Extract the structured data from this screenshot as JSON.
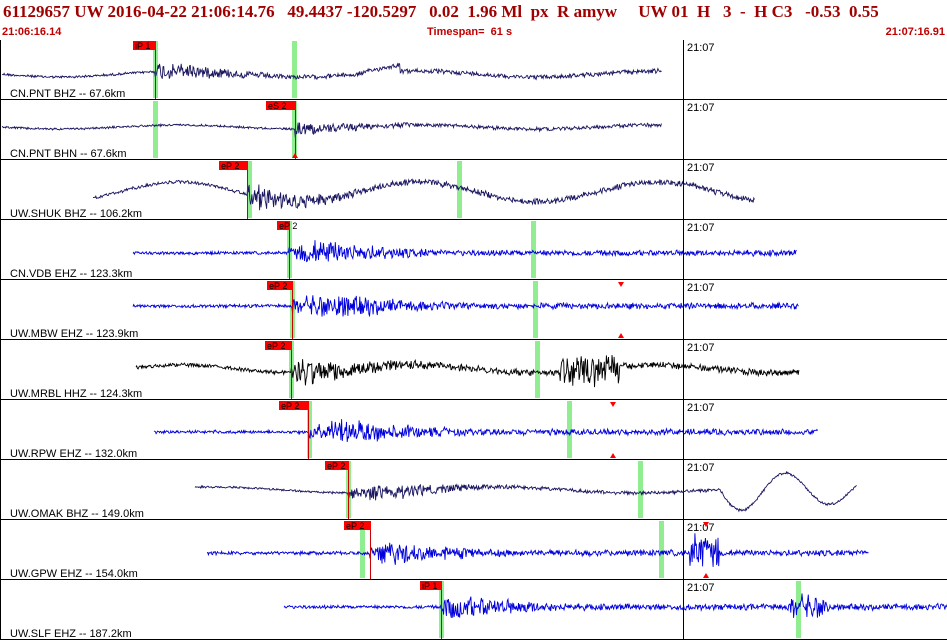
{
  "header": {
    "title": "61129657 UW 2016-04-22 21:06:14.76   49.4437 -120.5297   0.02  1.96 Ml  px  R amyw     UW 01  H   3  -  H C3   -0.53  0.55",
    "start_time": "21:06:16.14",
    "timespan": "Timespan=  61 s",
    "end_time": "21:07:16.91"
  },
  "colors": {
    "pick_flag": "#ff0000",
    "window_marker": "#90ee90",
    "trace_dark": "#1a1660",
    "trace_blue": "#0000dd",
    "trace_black": "#000000",
    "title_red": "#a00000"
  },
  "time_mark": "21:07",
  "traces": [
    {
      "label": "CN.PNT BHZ -- 67.6km",
      "pick_label": "iP 1",
      "color": "dark",
      "shape": "pnt"
    },
    {
      "label": "CN.PNT BHN -- 67.6km",
      "pick_label": "eS 2",
      "color": "dark",
      "shape": "pntn"
    },
    {
      "label": "UW.SHUK BHZ -- 106.2km",
      "pick_label": "eP 2",
      "color": "dark",
      "shape": "shuk"
    },
    {
      "label": "CN.VDB EHZ -- 123.3km",
      "pick_label": "eP 2",
      "color": "blue",
      "shape": "burst"
    },
    {
      "label": "UW.MBW EHZ -- 123.9km",
      "pick_label": "eP 2",
      "color": "blue",
      "shape": "burst"
    },
    {
      "label": "UW.MRBL HHZ -- 124.3km",
      "pick_label": "eP 2",
      "color": "black",
      "shape": "mrbl"
    },
    {
      "label": "UW.RPW EHZ -- 132.0km",
      "pick_label": "eP 2",
      "color": "blue",
      "shape": "burst"
    },
    {
      "label": "UW.OMAK BHZ -- 149.0km",
      "pick_label": "eP 2",
      "color": "dark",
      "shape": "omak"
    },
    {
      "label": "UW.GPW EHZ -- 154.0km",
      "pick_label": "eP 2",
      "color": "blue",
      "shape": "gpw"
    },
    {
      "label": "UW.SLF EHZ -- 187.2km",
      "pick_label": "iP 1",
      "color": "blue",
      "shape": "slf"
    }
  ]
}
